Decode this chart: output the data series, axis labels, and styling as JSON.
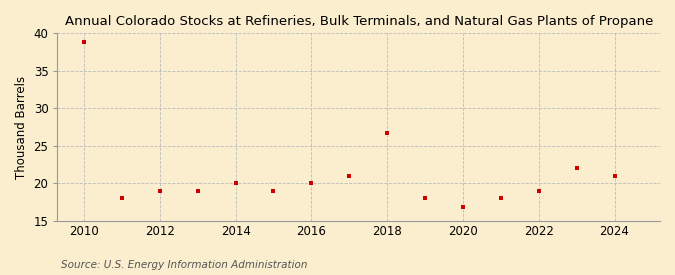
{
  "title": "Annual Colorado Stocks at Refineries, Bulk Terminals, and Natural Gas Plants of Propane",
  "ylabel": "Thousand Barrels",
  "source": "Source: U.S. Energy Information Administration",
  "years": [
    2010,
    2011,
    2012,
    2013,
    2014,
    2015,
    2016,
    2017,
    2018,
    2019,
    2020,
    2021,
    2022,
    2023,
    2024
  ],
  "values": [
    38.9,
    18.0,
    19.0,
    19.0,
    20.0,
    19.0,
    20.0,
    21.0,
    26.7,
    18.0,
    16.8,
    18.0,
    19.0,
    22.0,
    21.0
  ],
  "ylim": [
    15,
    40
  ],
  "yticks": [
    15,
    20,
    25,
    30,
    35,
    40
  ],
  "xticks": [
    2010,
    2012,
    2014,
    2016,
    2018,
    2020,
    2022,
    2024
  ],
  "xlim": [
    2009.3,
    2025.2
  ],
  "marker_color": "#cc0000",
  "marker": "s",
  "marker_size": 3.5,
  "bg_color": "#faeecf",
  "grid_color": "#bbbbbb",
  "title_fontsize": 9.5,
  "label_fontsize": 8.5,
  "tick_fontsize": 8.5,
  "source_fontsize": 7.5
}
